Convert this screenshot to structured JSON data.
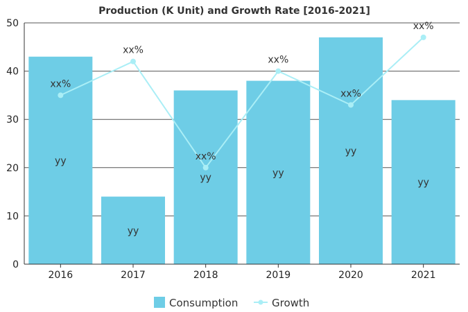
{
  "chart_data": {
    "type": "bar",
    "title": "Production (K Unit) and Growth Rate [2016-2021]",
    "categories": [
      "2016",
      "2017",
      "2018",
      "2019",
      "2020",
      "2021"
    ],
    "ylim": [
      0,
      50
    ],
    "yticks": [
      0,
      10,
      20,
      30,
      40,
      50
    ],
    "grid": true,
    "legend_position": "bottom",
    "series": [
      {
        "name": "Consumption",
        "type": "bar",
        "color": "#6ecde6",
        "values": [
          43,
          14,
          36,
          38,
          47,
          34
        ],
        "labels": [
          "yy",
          "yy",
          "yy",
          "yy",
          "yy",
          "yy"
        ]
      },
      {
        "name": "Growth",
        "type": "line",
        "color": "#aaeef6",
        "values": [
          35,
          42,
          20,
          40,
          33,
          47
        ],
        "labels": [
          "xx%",
          "xx%",
          "xx%",
          "xx%",
          "xx%",
          "xx%"
        ]
      }
    ]
  }
}
